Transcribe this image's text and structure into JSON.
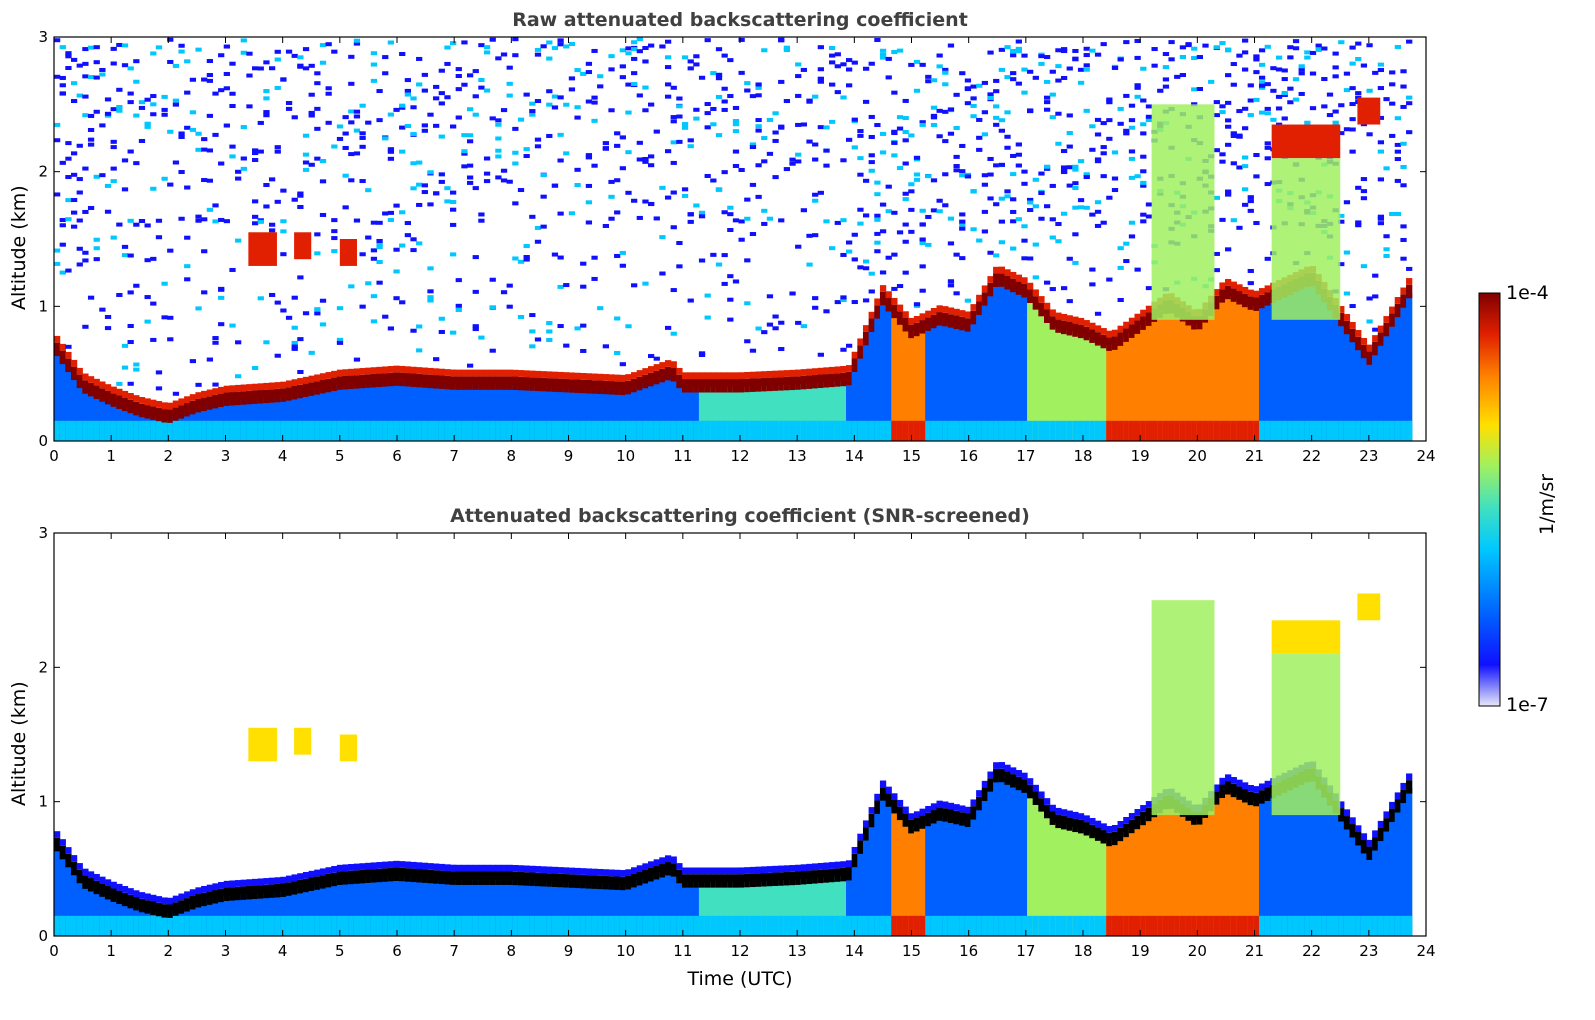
{
  "chart_data": [
    {
      "type": "heatmap",
      "title": "Raw attenuated backscattering coefficient",
      "xlabel": "",
      "ylabel": "Altitude (km)",
      "xlim": [
        0,
        24
      ],
      "ylim": [
        0,
        3
      ],
      "xticks": [
        "0",
        "1",
        "2",
        "3",
        "4",
        "5",
        "6",
        "7",
        "8",
        "9",
        "10",
        "11",
        "12",
        "13",
        "14",
        "15",
        "16",
        "17",
        "18",
        "19",
        "20",
        "21",
        "22",
        "23",
        "24"
      ],
      "yticks": [
        "0",
        "1",
        "2",
        "3"
      ],
      "boundary_layer_top_km": [
        [
          0.0,
          0.7
        ],
        [
          0.5,
          0.4
        ],
        [
          1.0,
          0.3
        ],
        [
          1.5,
          0.22
        ],
        [
          2.0,
          0.17
        ],
        [
          2.5,
          0.25
        ],
        [
          3.0,
          0.3
        ],
        [
          4.0,
          0.33
        ],
        [
          5.0,
          0.42
        ],
        [
          6.0,
          0.45
        ],
        [
          7.0,
          0.42
        ],
        [
          8.0,
          0.42
        ],
        [
          9.0,
          0.4
        ],
        [
          10.0,
          0.38
        ],
        [
          10.8,
          0.5
        ],
        [
          11.0,
          0.4
        ],
        [
          12.0,
          0.4
        ],
        [
          13.0,
          0.42
        ],
        [
          13.9,
          0.45
        ],
        [
          14.5,
          1.05
        ],
        [
          15.0,
          0.8
        ],
        [
          15.5,
          0.9
        ],
        [
          16.0,
          0.85
        ],
        [
          16.5,
          1.2
        ],
        [
          17.0,
          1.1
        ],
        [
          17.5,
          0.85
        ],
        [
          18.0,
          0.8
        ],
        [
          18.5,
          0.7
        ],
        [
          19.0,
          0.85
        ],
        [
          19.5,
          1.0
        ],
        [
          20.0,
          0.85
        ],
        [
          20.5,
          1.1
        ],
        [
          21.0,
          1.0
        ],
        [
          22.0,
          1.2
        ],
        [
          23.0,
          0.6
        ],
        [
          23.7,
          1.1
        ]
      ],
      "high_clouds_km": [
        {
          "t": [
            3.4,
            3.9
          ],
          "z": [
            1.3,
            1.55
          ]
        },
        {
          "t": [
            4.2,
            4.5
          ],
          "z": [
            1.35,
            1.55
          ]
        },
        {
          "t": [
            5.0,
            5.3
          ],
          "z": [
            1.3,
            1.5
          ]
        },
        {
          "t": [
            21.3,
            22.5
          ],
          "z": [
            2.1,
            2.35
          ]
        },
        {
          "t": [
            22.8,
            23.2
          ],
          "z": [
            2.35,
            2.55
          ]
        }
      ]
    },
    {
      "type": "heatmap",
      "title": "Attenuated backscattering coefficient (SNR-screened)",
      "xlabel": "Time (UTC)",
      "ylabel": "Altitude (km)",
      "xlim": [
        0,
        24
      ],
      "ylim": [
        0,
        3
      ],
      "xticks": [
        "0",
        "1",
        "2",
        "3",
        "4",
        "5",
        "6",
        "7",
        "8",
        "9",
        "10",
        "11",
        "12",
        "13",
        "14",
        "15",
        "16",
        "17",
        "18",
        "19",
        "20",
        "21",
        "22",
        "23",
        "24"
      ],
      "yticks": [
        "0",
        "1",
        "2",
        "3"
      ]
    }
  ],
  "colorbar": {
    "label": "1/m/sr",
    "min_label": "1e-7",
    "max_label": "1e-4",
    "colors": [
      "#e8e8f8",
      "#1010ff",
      "#0060ff",
      "#00c8ff",
      "#40e0c0",
      "#a0f060",
      "#ffe000",
      "#ff8000",
      "#e02000",
      "#800000"
    ]
  }
}
